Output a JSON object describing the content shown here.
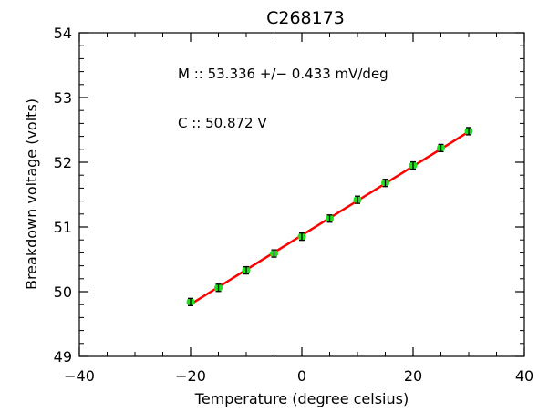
{
  "chart_data": {
    "type": "scatter",
    "title": "C268173",
    "xlabel": "Temperature (degree celsius)",
    "ylabel": "Breakdown voltage (volts)",
    "xlim": [
      -40,
      40
    ],
    "ylim": [
      49,
      54
    ],
    "x_ticks": [
      -40,
      -20,
      0,
      20,
      40
    ],
    "y_ticks": [
      49,
      50,
      51,
      52,
      53,
      54
    ],
    "x_tick_labels": [
      "−40",
      "−20",
      "0",
      "20",
      "40"
    ],
    "y_tick_labels": [
      "49",
      "50",
      "51",
      "52",
      "53",
      "54"
    ],
    "grid": false,
    "series": [
      {
        "x": [
          -20,
          -15,
          -10,
          -5,
          0,
          5,
          10,
          15,
          20,
          25,
          30
        ],
        "y": [
          49.84,
          50.06,
          50.33,
          50.59,
          50.85,
          51.13,
          51.42,
          51.68,
          51.95,
          52.22,
          52.48
        ],
        "marker_color": "#22dd22"
      }
    ],
    "fit_line": {
      "x": [
        -20,
        30
      ],
      "y": [
        49.805,
        52.472
      ],
      "color": "#ff0000"
    },
    "annotations": [
      "M :: 53.336 +/− 0.433 mV/deg",
      "C :: 50.872 V"
    ]
  }
}
